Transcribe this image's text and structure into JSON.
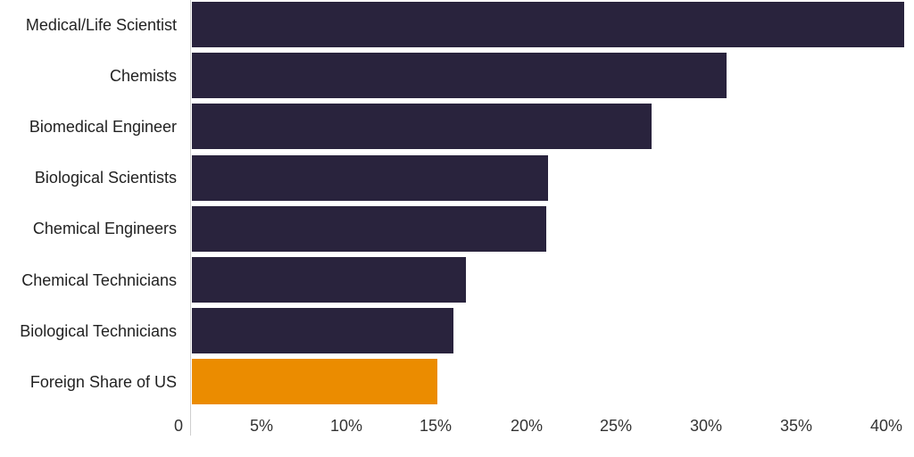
{
  "chart_data": {
    "type": "bar",
    "orientation": "horizontal",
    "title": "",
    "xlabel": "",
    "ylabel": "",
    "categories": [
      "Medical/Life Scientist",
      "Chemists",
      "Biomedical Engineer",
      "Biological Scientists",
      "Chemical Engineers",
      "Chemical Technicians",
      "Biological Technicians",
      "Foreign Share of US"
    ],
    "values": [
      40.0,
      30.0,
      25.8,
      20.0,
      19.9,
      15.4,
      14.7,
      13.8
    ],
    "colors": [
      "#29233d",
      "#29233d",
      "#29233d",
      "#29233d",
      "#29233d",
      "#29233d",
      "#29233d",
      "#eb8c00"
    ],
    "xlim": [
      0,
      40
    ],
    "x_ticks": [
      "0",
      "5%",
      "10%",
      "15%",
      "20%",
      "25%",
      "30%",
      "35%",
      "40%"
    ],
    "grid": false,
    "legend": null
  },
  "colors": {
    "primary": "#29233d",
    "highlight": "#eb8c00",
    "axis": "#cfcfcf"
  }
}
